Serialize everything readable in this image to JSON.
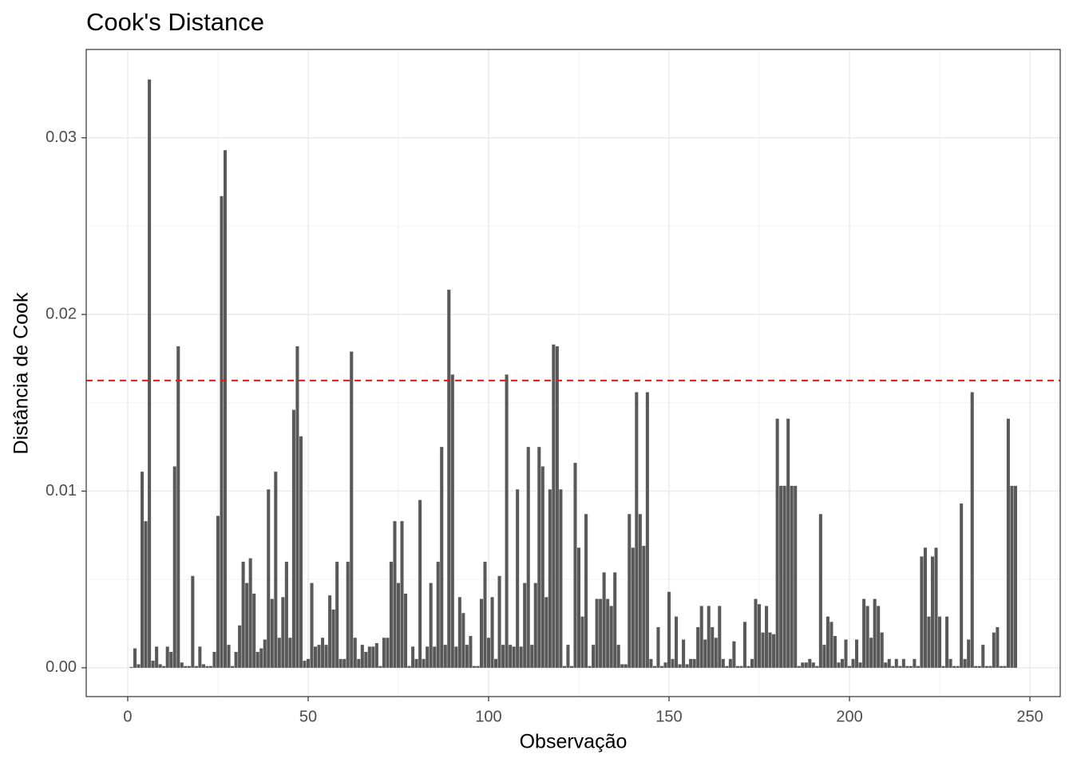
{
  "chart_data": {
    "type": "bar",
    "title": "Cook's Distance",
    "xlabel": "Observação",
    "ylabel": "Distância de Cook",
    "x": [
      1,
      2,
      3,
      4,
      5,
      6,
      7,
      8,
      9,
      10,
      11,
      12,
      13,
      14,
      15,
      16,
      17,
      18,
      19,
      20,
      21,
      22,
      23,
      24,
      25,
      26,
      27,
      28,
      29,
      30,
      31,
      32,
      33,
      34,
      35,
      36,
      37,
      38,
      39,
      40,
      41,
      42,
      43,
      44,
      45,
      46,
      47,
      48,
      49,
      50,
      51,
      52,
      53,
      54,
      55,
      56,
      57,
      58,
      59,
      60,
      61,
      62,
      63,
      64,
      65,
      66,
      67,
      68,
      69,
      70,
      71,
      72,
      73,
      74,
      75,
      76,
      77,
      78,
      79,
      80,
      81,
      82,
      83,
      84,
      85,
      86,
      87,
      88,
      89,
      90,
      91,
      92,
      93,
      94,
      95,
      96,
      97,
      98,
      99,
      100,
      101,
      102,
      103,
      104,
      105,
      106,
      107,
      108,
      109,
      110,
      111,
      112,
      113,
      114,
      115,
      116,
      117,
      118,
      119,
      120,
      121,
      122,
      123,
      124,
      125,
      126,
      127,
      128,
      129,
      130,
      131,
      132,
      133,
      134,
      135,
      136,
      137,
      138,
      139,
      140,
      141,
      142,
      143,
      144,
      145,
      146,
      147,
      148,
      149,
      150,
      151,
      152,
      153,
      154,
      155,
      156,
      157,
      158,
      159,
      160,
      161,
      162,
      163,
      164,
      165,
      166,
      167,
      168,
      169,
      170,
      171,
      172,
      173,
      174,
      175,
      176,
      177,
      178,
      179,
      180,
      181,
      182,
      183,
      184,
      185,
      186,
      187,
      188,
      189,
      190,
      191,
      192,
      193,
      194,
      195,
      196,
      197,
      198,
      199,
      200,
      201,
      202,
      203,
      204,
      205,
      206,
      207,
      208,
      209,
      210,
      211,
      212,
      213,
      214,
      215,
      216,
      217,
      218,
      219,
      220,
      221,
      222,
      223,
      224,
      225,
      226,
      227,
      228,
      229,
      230,
      231,
      232,
      233,
      234,
      235,
      236,
      237,
      238,
      239,
      240,
      241,
      242,
      243,
      244,
      245,
      246
    ],
    "values": [
      5e-05,
      0.0011,
      0.0002,
      0.0111,
      0.0083,
      0.0333,
      0.0004,
      0.0012,
      0.0002,
      0.0001,
      0.0012,
      0.0009,
      0.0114,
      0.0182,
      0.0003,
      0.0001,
      0.0001,
      0.0052,
      0.0001,
      0.0012,
      0.0002,
      0.0001,
      0.0001,
      0.0009,
      0.0086,
      0.0267,
      0.0293,
      0.0013,
      0.0001,
      0.0009,
      0.0024,
      0.006,
      0.0048,
      0.0062,
      0.0042,
      0.0009,
      0.0011,
      0.0016,
      0.0101,
      0.0039,
      0.0111,
      0.0017,
      0.004,
      0.006,
      0.0017,
      0.0146,
      0.0182,
      0.0131,
      0.0004,
      0.0005,
      0.0048,
      0.0012,
      0.0013,
      0.0017,
      0.0013,
      0.0041,
      0.0033,
      0.006,
      0.0005,
      0.0005,
      0.006,
      0.0179,
      0.0017,
      0.0005,
      0.0013,
      0.0009,
      0.0012,
      0.0012,
      0.0014,
      0.0001,
      0.0017,
      0.0017,
      0.006,
      0.0083,
      0.0048,
      0.0083,
      0.0042,
      0.0001,
      0.0012,
      0.0005,
      0.0095,
      0.0005,
      0.0012,
      0.0048,
      0.0012,
      0.006,
      0.0125,
      0.0013,
      0.0214,
      0.0166,
      0.0012,
      0.004,
      0.0031,
      0.0013,
      0.0018,
      0.0001,
      0.0001,
      0.0039,
      0.006,
      0.0017,
      0.004,
      0.0005,
      0.0052,
      0.0013,
      0.0166,
      0.0013,
      0.0012,
      0.0101,
      0.0012,
      0.0048,
      0.0125,
      0.0013,
      0.0048,
      0.0125,
      0.0114,
      0.004,
      0.0101,
      0.0183,
      0.0182,
      0.0101,
      0.0001,
      0.0013,
      0.0001,
      0.0116,
      0.0068,
      0.0029,
      0.0087,
      0.0001,
      0.0013,
      0.0039,
      0.0039,
      0.0054,
      0.0039,
      0.0035,
      0.0054,
      0.0013,
      0.0002,
      0.0002,
      0.0087,
      0.0068,
      0.0156,
      0.0087,
      0.0069,
      0.0156,
      0.0005,
      0.0001,
      0.0023,
      0.0001,
      0.0003,
      0.0043,
      0.0005,
      0.0029,
      0.0002,
      0.0016,
      0.0002,
      0.0005,
      0.0005,
      0.0023,
      0.0035,
      0.0016,
      0.0035,
      0.0023,
      0.0017,
      0.0035,
      0.0005,
      0.0001,
      0.0005,
      0.0015,
      0.0001,
      0.0001,
      0.0026,
      0.0001,
      0.0005,
      0.0039,
      0.0036,
      0.002,
      0.0035,
      0.002,
      0.0019,
      0.0141,
      0.0103,
      0.0103,
      0.0141,
      0.0103,
      0.0103,
      0.0001,
      0.0003,
      0.0003,
      0.0005,
      0.0003,
      0.0001,
      0.0087,
      0.0013,
      0.0029,
      0.0026,
      0.0018,
      0.0003,
      0.0005,
      0.0016,
      0.0001,
      0.0005,
      0.0016,
      0.0003,
      0.0039,
      0.0035,
      0.0017,
      0.0039,
      0.0035,
      0.002,
      0.0003,
      0.0005,
      0.0001,
      0.0005,
      0.0001,
      0.0005,
      0.0001,
      0.0001,
      0.0005,
      0.0001,
      0.0063,
      0.0068,
      0.0029,
      0.0063,
      0.0068,
      0.0029,
      0.0001,
      0.0029,
      0.0005,
      0.0001,
      0.0001,
      0.0093,
      0.0005,
      0.0016,
      0.0156,
      0.0001,
      0.0001,
      0.0013,
      0.0001,
      0.0001,
      0.002,
      0.0023,
      0.0001,
      0.0001,
      0.0141,
      0.0103,
      0.0103
    ],
    "color": "#595959",
    "threshold": 0.01626,
    "threshold_color": "#e31a1c",
    "xlim": [
      -11.5,
      258.4
    ],
    "xticks": [
      0,
      50,
      100,
      150,
      200,
      250
    ],
    "xminor": [
      25,
      75,
      125,
      175,
      225
    ],
    "ylim": [
      -0.00163,
      0.035
    ],
    "yticks": [
      {
        "value": 0,
        "label": "0.00"
      },
      0.01,
      0.02,
      0.03
    ],
    "yminor": [
      0.005,
      0.015,
      0.025
    ],
    "grid": true
  }
}
